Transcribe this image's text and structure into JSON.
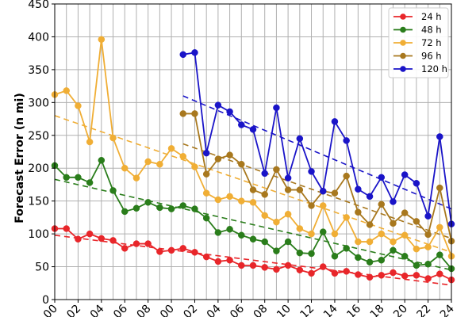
{
  "chart_data": {
    "type": "line",
    "title": "",
    "xlabel": "",
    "ylabel": "Forecast Error (n mi)",
    "xlim": [
      1990,
      2024
    ],
    "ylim": [
      0,
      450
    ],
    "yticks": [
      0,
      50,
      100,
      150,
      200,
      250,
      300,
      350,
      400,
      450
    ],
    "xticks": [
      1990,
      1992,
      1994,
      1996,
      1998,
      2000,
      2002,
      2004,
      2006,
      2008,
      2010,
      2012,
      2014,
      2016,
      2018,
      2020,
      2022,
      2024
    ],
    "xtick_labels": [
      "00",
      "02",
      "04",
      "06",
      "08",
      "00",
      "02",
      "04",
      "06",
      "08",
      "10",
      "12",
      "14",
      "16",
      "18",
      "20",
      "22",
      "24"
    ],
    "grid": true,
    "legend_position": "top-right",
    "series": [
      {
        "name": "24 h",
        "color": "#e8262a",
        "x": [
          1990,
          1991,
          1992,
          1993,
          1994,
          1995,
          1996,
          1997,
          1998,
          1999,
          2000,
          2001,
          2002,
          2003,
          2004,
          2005,
          2006,
          2007,
          2008,
          2009,
          2010,
          2011,
          2012,
          2013,
          2014,
          2015,
          2016,
          2017,
          2018,
          2019,
          2020,
          2021,
          2022,
          2023,
          2024
        ],
        "values": [
          108,
          108,
          92,
          100,
          93,
          90,
          78,
          85,
          85,
          73,
          75,
          78,
          72,
          65,
          58,
          60,
          52,
          52,
          49,
          46,
          52,
          45,
          40,
          50,
          40,
          43,
          38,
          34,
          37,
          41,
          36,
          37,
          32,
          39,
          30
        ],
        "trend": [
          [
            1990,
            98
          ],
          [
            2024,
            22
          ]
        ]
      },
      {
        "name": "48 h",
        "color": "#2a7d1b",
        "x": [
          1990,
          1991,
          1992,
          1993,
          1994,
          1995,
          1996,
          1997,
          1998,
          1999,
          2000,
          2001,
          2002,
          2003,
          2004,
          2005,
          2006,
          2007,
          2008,
          2009,
          2010,
          2011,
          2012,
          2013,
          2014,
          2015,
          2016,
          2017,
          2018,
          2019,
          2020,
          2021,
          2022,
          2023,
          2024
        ],
        "values": [
          204,
          186,
          186,
          178,
          212,
          166,
          134,
          139,
          148,
          140,
          138,
          143,
          138,
          124,
          102,
          107,
          98,
          92,
          88,
          74,
          88,
          71,
          70,
          103,
          66,
          78,
          64,
          57,
          60,
          75,
          66,
          52,
          54,
          68,
          47
        ],
        "trend": [
          [
            1990,
            183
          ],
          [
            2024,
            45
          ]
        ]
      },
      {
        "name": "72 h",
        "color": "#f0ae35",
        "x": [
          1990,
          1991,
          1992,
          1993,
          1994,
          1995,
          1996,
          1997,
          1998,
          1999,
          2000,
          2001,
          2002,
          2003,
          2004,
          2005,
          2006,
          2007,
          2008,
          2009,
          2010,
          2011,
          2012,
          2013,
          2014,
          2015,
          2016,
          2017,
          2018,
          2019,
          2020,
          2021,
          2022,
          2023,
          2024
        ],
        "values": [
          312,
          318,
          295,
          240,
          396,
          246,
          200,
          185,
          210,
          206,
          230,
          218,
          202,
          162,
          152,
          157,
          150,
          148,
          128,
          118,
          130,
          108,
          100,
          143,
          100,
          125,
          88,
          88,
          100,
          88,
          98,
          77,
          80,
          110,
          66
        ],
        "trend": [
          [
            1990,
            280
          ],
          [
            2024,
            72
          ]
        ]
      },
      {
        "name": "96 h",
        "color": "#a8781e",
        "x": [
          2001,
          2002,
          2003,
          2004,
          2005,
          2006,
          2007,
          2008,
          2009,
          2010,
          2011,
          2012,
          2013,
          2014,
          2015,
          2016,
          2017,
          2018,
          2019,
          2020,
          2021,
          2022,
          2023,
          2024
        ],
        "values": [
          283,
          283,
          191,
          214,
          220,
          206,
          167,
          160,
          198,
          167,
          167,
          143,
          165,
          162,
          188,
          133,
          114,
          145,
          116,
          132,
          119,
          99,
          170,
          89
        ],
        "trend": [
          [
            2001,
            237
          ],
          [
            2024,
            93
          ]
        ]
      },
      {
        "name": "120 h",
        "color": "#1a14c8",
        "x": [
          2001,
          2002,
          2003,
          2004,
          2005,
          2006,
          2007,
          2008,
          2009,
          2010,
          2011,
          2012,
          2013,
          2014,
          2015,
          2016,
          2017,
          2018,
          2019,
          2020,
          2021,
          2022,
          2023,
          2024
        ],
        "values": [
          373,
          376,
          223,
          296,
          286,
          266,
          259,
          192,
          292,
          185,
          245,
          195,
          165,
          271,
          242,
          168,
          157,
          186,
          149,
          190,
          177,
          127,
          248,
          115
        ],
        "trend": [
          [
            2001,
            310
          ],
          [
            2024,
            138
          ]
        ]
      }
    ]
  }
}
